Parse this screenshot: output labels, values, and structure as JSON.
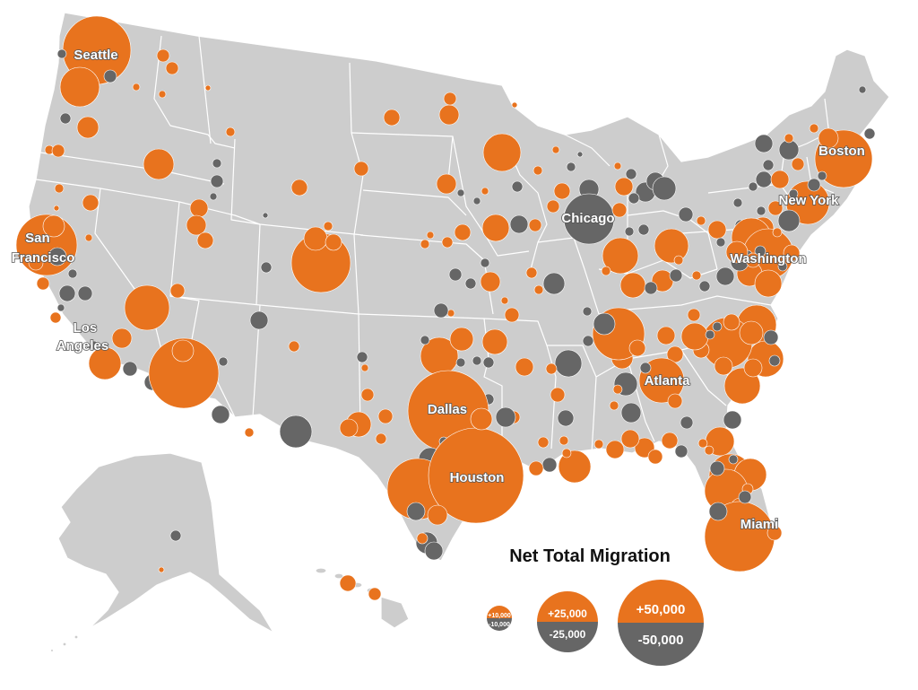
{
  "colors": {
    "gain": "#e8731e",
    "loss": "#666666",
    "land": "#cdcdcd",
    "border": "#ffffff"
  },
  "map": {
    "cities": [
      {
        "id": "seattle",
        "label": [
          "Seattle"
        ]
      },
      {
        "id": "san-francisco",
        "label": [
          "San",
          "Francisco"
        ]
      },
      {
        "id": "los-angeles",
        "label": [
          "Los",
          "Angeles"
        ]
      },
      {
        "id": "dallas",
        "label": [
          "Dallas"
        ]
      },
      {
        "id": "houston",
        "label": [
          "Houston"
        ]
      },
      {
        "id": "chicago",
        "label": [
          "Chicago"
        ]
      },
      {
        "id": "atlanta",
        "label": [
          "Atlanta"
        ]
      },
      {
        "id": "miami",
        "label": [
          "Miami"
        ]
      },
      {
        "id": "washington",
        "label": [
          "Washington"
        ]
      },
      {
        "id": "new-york",
        "label": [
          "New York"
        ]
      },
      {
        "id": "boston",
        "label": [
          "Boston"
        ]
      }
    ]
  },
  "legend": {
    "title": "Net Total Migration",
    "sizes": [
      {
        "gain": "+10,000",
        "loss": "-10,000"
      },
      {
        "gain": "+25,000",
        "loss": "-25,000"
      },
      {
        "gain": "+50,000",
        "loss": "-50,000"
      }
    ]
  }
}
